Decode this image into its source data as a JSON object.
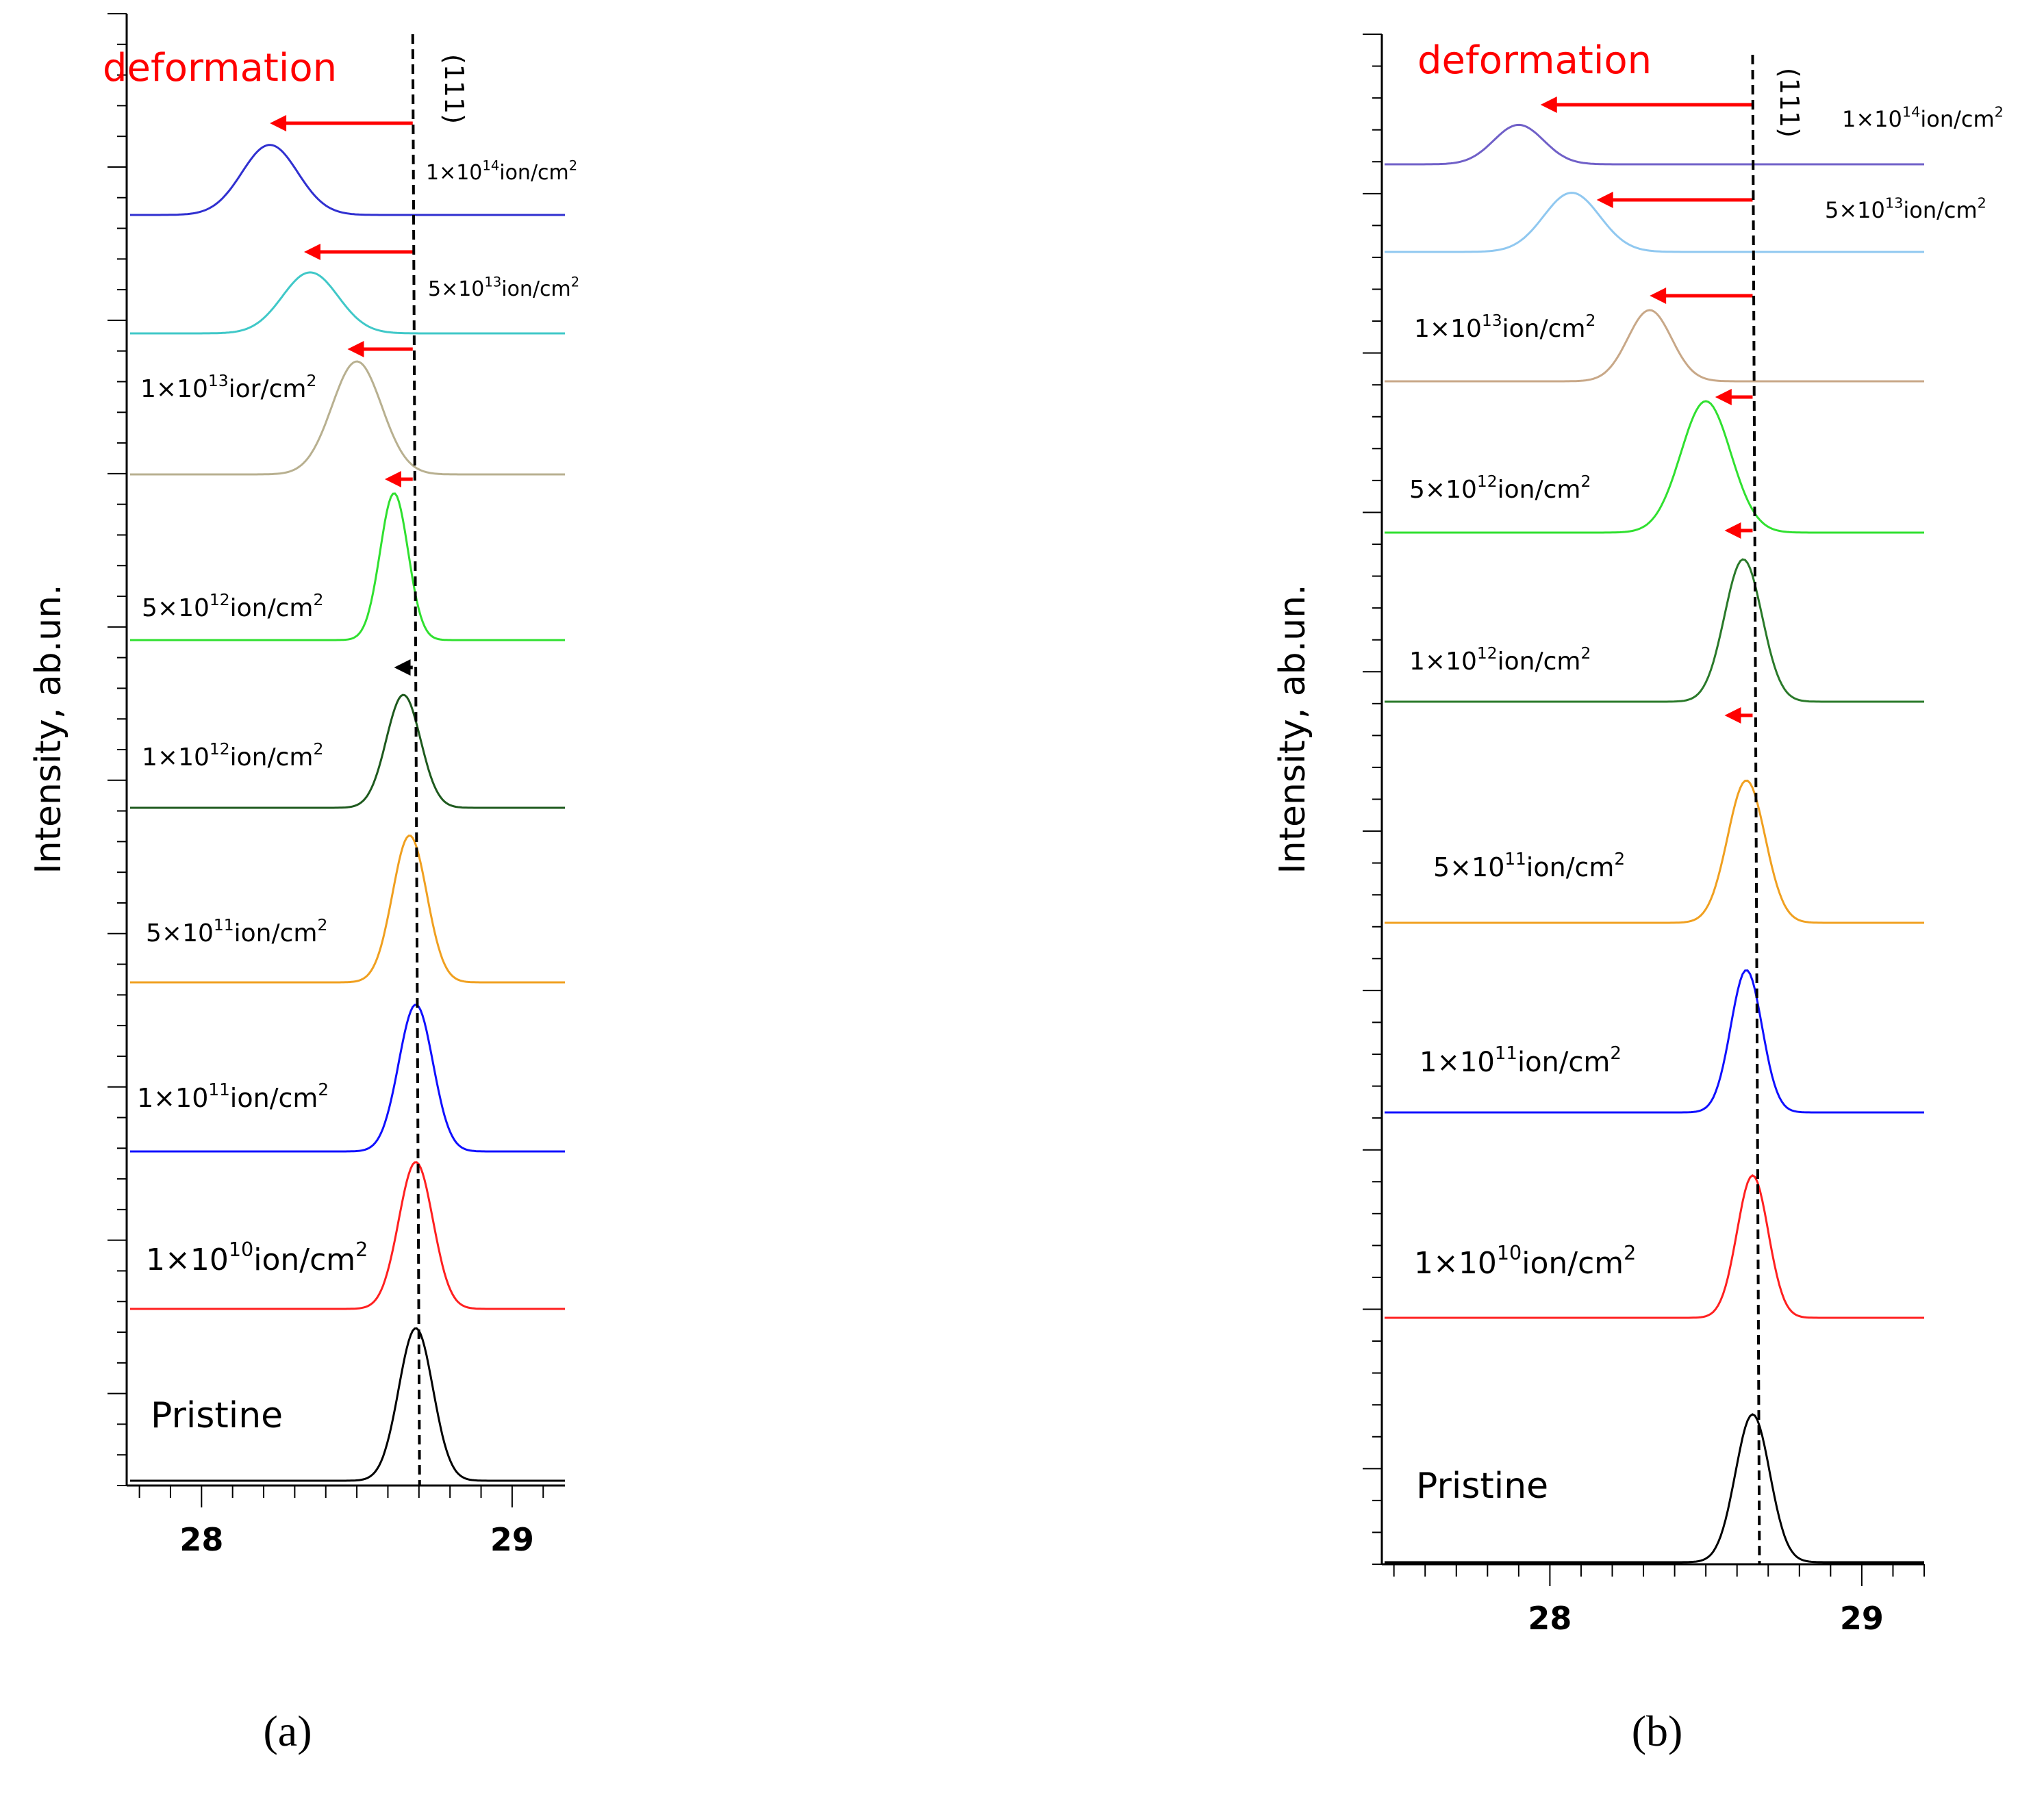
{
  "chart_data": [
    {
      "panel": "a",
      "caption": "(a)",
      "type": "line",
      "ylabel": "Intensity, ab.un.",
      "xlabel": "",
      "xlim": [
        27.77,
        29.17
      ],
      "xticks": [
        28,
        29
      ],
      "xtick_labels": [
        "28",
        "29"
      ],
      "annotation_deformation": "deformation",
      "annotation_plane": "(111)",
      "reference_line_x": 28.68,
      "series": [
        {
          "name": "1×10¹⁴ion/cm²",
          "base": "1×10",
          "exp": "14",
          "unit": "ion/cm",
          "sq": "2",
          "color": "#3030d0",
          "peak": 28.22,
          "height": 0.62,
          "sigma": 0.09,
          "arrow_from": 28.68,
          "arrow_to": 28.22,
          "arrow_color": "#ff0000"
        },
        {
          "name": "5×10¹³ion/cm²",
          "base": "5×10",
          "exp": "13",
          "unit": "ion/cm",
          "sq": "2",
          "color": "#40c8c8",
          "peak": 28.35,
          "height": 0.54,
          "sigma": 0.09,
          "arrow_from": 28.68,
          "arrow_to": 28.33,
          "arrow_color": "#ff0000"
        },
        {
          "name": "1×10¹³ior/cm²",
          "base": "1×10",
          "exp": "13",
          "unit": "ior/cm",
          "sq": "2",
          "color": "#b8b090",
          "peak": 28.5,
          "height": 1.0,
          "sigma": 0.08,
          "arrow_from": 28.68,
          "arrow_to": 28.47,
          "arrow_color": "#ff0000"
        },
        {
          "name": "5×10¹²ion/cm²",
          "base": "5×10",
          "exp": "12",
          "unit": "ion/cm",
          "sq": "2",
          "color": "#30e030",
          "peak": 28.62,
          "height": 1.3,
          "sigma": 0.045,
          "arrow_from": 28.68,
          "arrow_to": 28.59,
          "arrow_color": "#ff0000"
        },
        {
          "name": "1×10¹²ion/cm²",
          "base": "1×10",
          "exp": "12",
          "unit": "ion/cm",
          "sq": "2",
          "color": "#1e5a1e",
          "peak": 28.65,
          "height": 1.0,
          "sigma": 0.055,
          "arrow_from": 28.68,
          "arrow_to": 28.62,
          "arrow_color": "#000000"
        },
        {
          "name": "5×10¹¹ion/cm²",
          "base": "5×10",
          "exp": "11",
          "unit": "ion/cm",
          "sq": "2",
          "color": "#f0a020",
          "peak": 28.67,
          "height": 1.3,
          "sigma": 0.055,
          "arrow_from": null,
          "arrow_to": null,
          "arrow_color": ""
        },
        {
          "name": "1×10¹¹ion/cm²",
          "base": "1×10",
          "exp": "11",
          "unit": "ion/cm",
          "sq": "2",
          "color": "#1010ff",
          "peak": 28.69,
          "height": 1.3,
          "sigma": 0.055,
          "arrow_from": null,
          "arrow_to": null,
          "arrow_color": ""
        },
        {
          "name": "1×10¹⁰ion/cm²",
          "base": "1×10",
          "exp": "10",
          "unit": "ion/cm",
          "sq": "2",
          "color": "#ff2020",
          "peak": 28.69,
          "height": 1.3,
          "sigma": 0.055,
          "arrow_from": null,
          "arrow_to": null,
          "arrow_color": ""
        },
        {
          "name": "Pristine",
          "base": "Pristine",
          "exp": "",
          "unit": "",
          "sq": "",
          "color": "#000000",
          "peak": 28.69,
          "height": 1.35,
          "sigma": 0.055,
          "arrow_from": null,
          "arrow_to": null,
          "arrow_color": ""
        }
      ]
    },
    {
      "panel": "b",
      "caption": "(b)",
      "type": "line",
      "ylabel": "Intensity, ab.un.",
      "xlabel": "",
      "xlim": [
        27.47,
        29.2
      ],
      "xticks": [
        28,
        29
      ],
      "xtick_labels": [
        "28",
        "29"
      ],
      "annotation_deformation": "deformation",
      "annotation_plane": "(111)",
      "reference_line_x": 28.65,
      "series": [
        {
          "name": "1×10¹⁴ion/cm²",
          "base": "1×10",
          "exp": "14",
          "unit": "ion/cm",
          "sq": "2",
          "color": "#7060c8",
          "peak": 27.9,
          "height": 0.36,
          "sigma": 0.08,
          "arrow_from": 28.65,
          "arrow_to": 27.97,
          "arrow_color": "#ff0000"
        },
        {
          "name": "5×10¹³ion/cm²",
          "base": "5×10",
          "exp": "13",
          "unit": "ion/cm",
          "sq": "2",
          "color": "#90c8f0",
          "peak": 28.07,
          "height": 0.54,
          "sigma": 0.09,
          "arrow_from": 28.65,
          "arrow_to": 28.15,
          "arrow_color": "#ff0000"
        },
        {
          "name": "1×10¹³ion/cm²",
          "base": "1×10",
          "exp": "13",
          "unit": "ion/cm",
          "sq": "2",
          "color": "#c8a888",
          "peak": 28.32,
          "height": 0.65,
          "sigma": 0.07,
          "arrow_from": 28.65,
          "arrow_to": 28.32,
          "arrow_color": "#ff0000"
        },
        {
          "name": "5×10¹²ion/cm²",
          "base": "5×10",
          "exp": "12",
          "unit": "ion/cm",
          "sq": "2",
          "color": "#30e030",
          "peak": 28.5,
          "height": 1.2,
          "sigma": 0.08,
          "arrow_from": 28.65,
          "arrow_to": 28.53,
          "arrow_color": "#ff0000"
        },
        {
          "name": "1×10¹²ion/cm²",
          "base": "1×10",
          "exp": "12",
          "unit": "ion/cm",
          "sq": "2",
          "color": "#2a7a2a",
          "peak": 28.62,
          "height": 1.3,
          "sigma": 0.06,
          "arrow_from": 28.65,
          "arrow_to": 28.56,
          "arrow_color": "#ff0000"
        },
        {
          "name": "5×10¹¹ion/cm²",
          "base": "5×10",
          "exp": "11",
          "unit": "ion/cm",
          "sq": "2",
          "color": "#f0a020",
          "peak": 28.63,
          "height": 1.3,
          "sigma": 0.06,
          "arrow_from": 28.65,
          "arrow_to": 28.56,
          "arrow_color": "#ff0000"
        },
        {
          "name": "1×10¹¹ion/cm²",
          "base": "1×10",
          "exp": "11",
          "unit": "ion/cm",
          "sq": "2",
          "color": "#1010ff",
          "peak": 28.63,
          "height": 1.3,
          "sigma": 0.05,
          "arrow_from": null,
          "arrow_to": null,
          "arrow_color": ""
        },
        {
          "name": "1×10¹⁰ion/cm²",
          "base": "1×10",
          "exp": "10",
          "unit": "ion/cm",
          "sq": "2",
          "color": "#ff2020",
          "peak": 28.65,
          "height": 1.3,
          "sigma": 0.05,
          "arrow_from": null,
          "arrow_to": null,
          "arrow_color": ""
        },
        {
          "name": "Pristine",
          "base": "Pristine",
          "exp": "",
          "unit": "",
          "sq": "",
          "color": "#000000",
          "peak": 28.65,
          "height": 1.35,
          "sigma": 0.055,
          "arrow_from": null,
          "arrow_to": null,
          "arrow_color": ""
        }
      ]
    }
  ]
}
